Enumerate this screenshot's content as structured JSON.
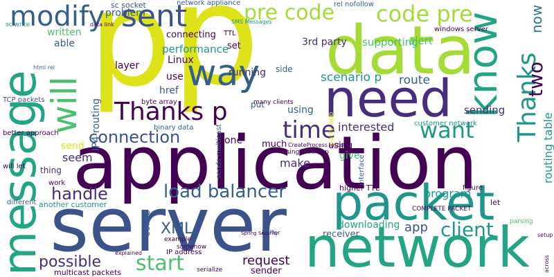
{
  "palette": {
    "yellow": "#dde318",
    "lime": "#a5db36",
    "green": "#4ac16d",
    "teal": "#21a585",
    "teal2": "#1f968b",
    "blue": "#2a788e",
    "steel": "#345f8d",
    "indigo": "#3b528b",
    "purple": "#472d7b",
    "dark": "#440154"
  },
  "words": [
    {
      "text": "p",
      "color": "yellow"
    },
    {
      "text": "p",
      "color": "yellow"
    },
    {
      "text": "data",
      "color": "lime"
    },
    {
      "text": "application",
      "color": "dark"
    },
    {
      "text": "server",
      "color": "indigo"
    },
    {
      "text": "message",
      "color": "teal"
    },
    {
      "text": "network",
      "color": "teal"
    },
    {
      "text": "packet",
      "color": "teal2"
    },
    {
      "text": "need",
      "color": "purple"
    },
    {
      "text": "sent",
      "color": "indigo"
    },
    {
      "text": "way",
      "color": "steel"
    },
    {
      "text": "will",
      "color": "green"
    },
    {
      "text": "modify",
      "color": "steel"
    },
    {
      "text": "know",
      "color": "teal"
    },
    {
      "text": "Thanks",
      "color": "teal2"
    },
    {
      "text": "Thanks p",
      "color": "dark"
    },
    {
      "text": "time",
      "color": "purple"
    },
    {
      "text": "want",
      "color": "teal2"
    },
    {
      "text": "code pre",
      "color": "lime"
    },
    {
      "text": "pre code",
      "color": "lime"
    },
    {
      "text": "connection",
      "color": "indigo"
    },
    {
      "text": "load balancer",
      "color": "steel"
    },
    {
      "text": "handle",
      "color": "purple"
    },
    {
      "text": "start",
      "color": "green"
    },
    {
      "text": "client",
      "color": "teal2"
    },
    {
      "text": "possible",
      "color": "purple"
    },
    {
      "text": "XML",
      "color": "steel"
    },
    {
      "text": "two",
      "color": "dark"
    },
    {
      "text": "now",
      "color": "blue"
    },
    {
      "text": "request",
      "color": "dark"
    },
    {
      "text": "interested",
      "color": "purple"
    },
    {
      "text": "routing table",
      "color": "teal2"
    },
    {
      "text": "performance",
      "color": "teal2"
    },
    {
      "text": "program",
      "color": "teal2"
    },
    {
      "text": "app",
      "color": "indigo"
    },
    {
      "text": "scenario p",
      "color": "teal2"
    },
    {
      "text": "route",
      "color": "steel"
    },
    {
      "text": "sending",
      "color": "purple"
    },
    {
      "text": "IP4 routing",
      "color": "steel"
    },
    {
      "text": "written",
      "color": "green"
    },
    {
      "text": "able",
      "color": "steel"
    },
    {
      "text": "problem",
      "color": "steel"
    },
    {
      "text": "sc socket",
      "color": "indigo"
    },
    {
      "text": "network appliance",
      "color": "steel"
    },
    {
      "text": "rel nofollow",
      "color": "steel"
    },
    {
      "text": "supporting",
      "color": "green"
    },
    {
      "text": "alert",
      "color": "green"
    },
    {
      "text": "3rd party",
      "color": "purple"
    },
    {
      "text": "connecting",
      "color": "dark"
    },
    {
      "text": "layer",
      "color": "dark"
    },
    {
      "text": "Linux",
      "color": "dark"
    },
    {
      "text": "use",
      "color": "dark"
    },
    {
      "text": "href",
      "color": "indigo"
    },
    {
      "text": "using",
      "color": "steel"
    },
    {
      "text": "using",
      "color": "dark"
    },
    {
      "text": "seem",
      "color": "purple"
    },
    {
      "text": "send",
      "color": "yellow"
    },
    {
      "text": "make",
      "color": "purple"
    },
    {
      "text": "give",
      "color": "green"
    },
    {
      "text": "much",
      "color": "dark"
    },
    {
      "text": "one",
      "color": "dark"
    },
    {
      "text": "thing",
      "color": "purple"
    },
    {
      "text": "set",
      "color": "dark"
    },
    {
      "text": "put",
      "color": "steel"
    },
    {
      "text": "side",
      "color": "steel"
    },
    {
      "text": "running",
      "color": "purple"
    },
    {
      "text": "come",
      "color": "steel"
    },
    {
      "text": "downloading",
      "color": "teal"
    },
    {
      "text": "receiver",
      "color": "steel"
    },
    {
      "text": "sender",
      "color": "dark"
    },
    {
      "text": "higher TTL",
      "color": "dark"
    },
    {
      "text": "another customer",
      "color": "teal2"
    },
    {
      "text": "multicast packets",
      "color": "dark"
    },
    {
      "text": "IP address",
      "color": "dark"
    },
    {
      "text": "sends multicast",
      "color": "steel"
    },
    {
      "text": "binary data",
      "color": "steel"
    },
    {
      "text": "byte array",
      "color": "dark"
    },
    {
      "text": "customer network",
      "color": "teal2"
    },
    {
      "text": "windows server",
      "color": "dark"
    },
    {
      "text": "TCP packets",
      "color": "indigo"
    },
    {
      "text": "better approach",
      "color": "dark"
    },
    {
      "text": "will let",
      "color": "dark"
    },
    {
      "text": "work",
      "color": "dark"
    },
    {
      "text": "different",
      "color": "steel"
    },
    {
      "text": "COMPLETE PACKET",
      "color": "dark"
    },
    {
      "text": "interface",
      "color": "steel"
    },
    {
      "text": "party app",
      "color": "yellow"
    },
    {
      "text": "using WinPCap",
      "color": "dark"
    },
    {
      "text": "many clients",
      "color": "dark"
    },
    {
      "text": "TTL",
      "color": "dark"
    },
    {
      "text": "example",
      "color": "dark"
    },
    {
      "text": "somehow",
      "color": "dark"
    },
    {
      "text": "explained",
      "color": "dark"
    },
    {
      "text": "serialize",
      "color": "dark"
    },
    {
      "text": "SMS Messages",
      "color": "teal2"
    },
    {
      "text": "sc write",
      "color": "teal2"
    },
    {
      "text": "html rel",
      "color": "steel"
    },
    {
      "text": "data link",
      "color": "dark"
    },
    {
      "text": "CreateProcess instead",
      "color": "dark"
    },
    {
      "text": "buffer",
      "color": "indigo"
    },
    {
      "text": "Spring Security",
      "color": "dark"
    },
    {
      "text": "figure",
      "color": "dark"
    },
    {
      "text": "let",
      "color": "dark"
    },
    {
      "text": "parsing",
      "color": "green"
    },
    {
      "text": "setup",
      "color": "dark"
    },
    {
      "text": "across",
      "color": "dark"
    }
  ]
}
